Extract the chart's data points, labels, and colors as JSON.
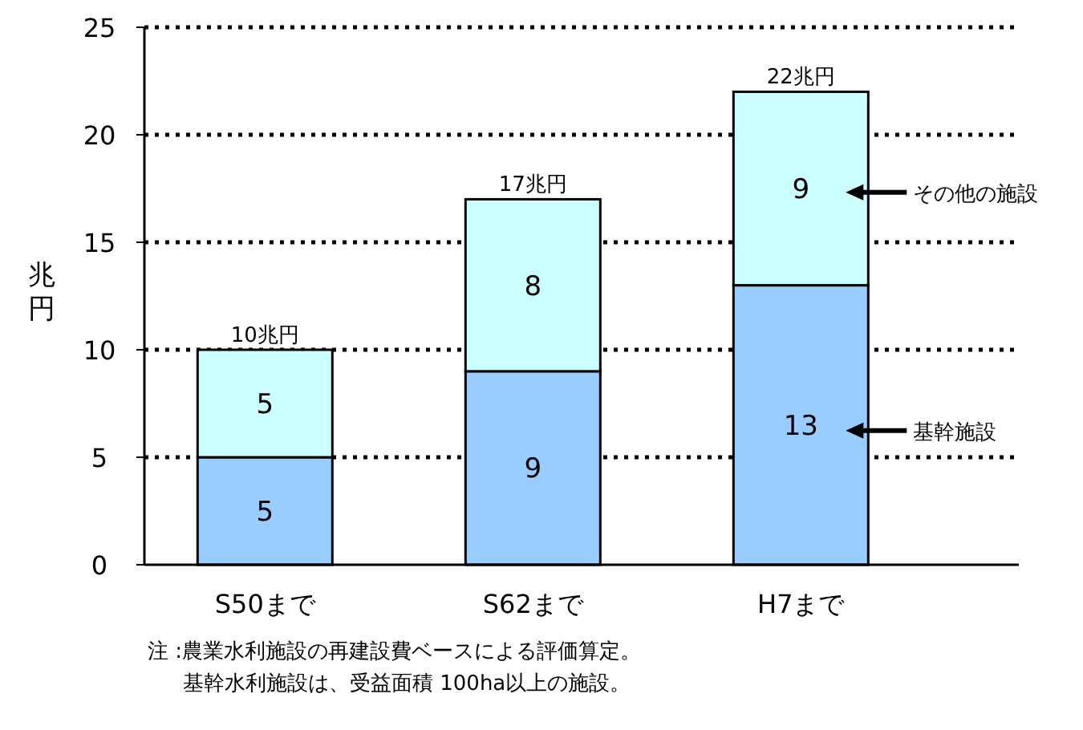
{
  "chart_data": {
    "type": "bar",
    "stacked": true,
    "ylabel": "兆円",
    "categories": [
      "S50まで",
      "S62まで",
      "H7まで"
    ],
    "series": [
      {
        "name": "基幹施設",
        "color": "#99ccff",
        "values": [
          5,
          9,
          13
        ]
      },
      {
        "name": "その他の施設",
        "color": "#ccffff",
        "values": [
          5,
          8,
          9
        ]
      }
    ],
    "data_labels": true,
    "totals": [
      "10兆円",
      "17兆円",
      "22兆円"
    ],
    "ylim": [
      0,
      25
    ],
    "yticks": [
      0,
      5,
      10,
      15,
      20,
      25
    ],
    "grid": "y",
    "legend": "right",
    "annotations": [
      "注 :農業水利施設の再建設費ベースによる評価算定。",
      "基幹水利施設は、受益面積 100ha以上の施設。"
    ]
  }
}
